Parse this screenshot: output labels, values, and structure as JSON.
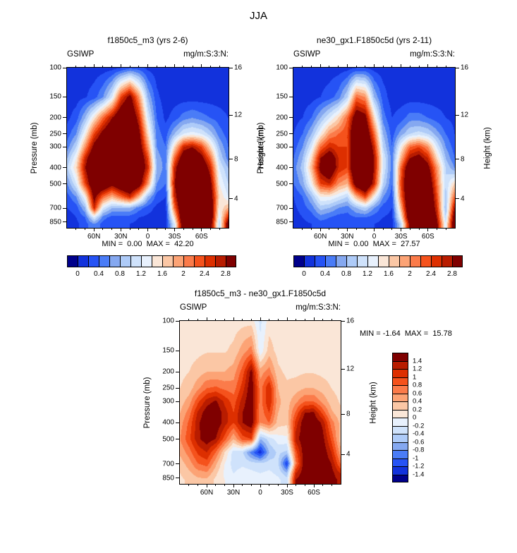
{
  "figure_title": "JJA",
  "palette": [
    "#00008B",
    "#1232DC",
    "#2653F5",
    "#4A7CF7",
    "#85A8F0",
    "#AECBF8",
    "#CFE2FB",
    "#E8F1FD",
    "#FAE6D7",
    "#FBC7A5",
    "#FCA375",
    "#FB7B4A",
    "#F5521C",
    "#DD2F00",
    "#B81C00",
    "#7F0000"
  ],
  "axes": {
    "ylabel": "Pressure (mb)",
    "y2label": "Height (km)",
    "pressure_ticks_mb": [
      100,
      150,
      200,
      250,
      300,
      400,
      500,
      700,
      850
    ],
    "pressure_tick_labels": [
      "100",
      "150",
      "200",
      "250",
      "300",
      "400",
      "500",
      "700",
      "850"
    ],
    "height_tick_pressures_mb": [
      96,
      193,
      356,
      616
    ],
    "height_tick_labels": [
      "16",
      "12",
      "8",
      "4"
    ],
    "lat_tick_labels": [
      "60N",
      "30N",
      "0",
      "30S",
      "60S"
    ],
    "pressure_axis_top_mb": 100,
    "pressure_axis_bottom_mb": 920,
    "lat_left_deg": 90,
    "lat_right_deg": -90
  },
  "colorbar_horizontal": {
    "tick_labels": [
      "0",
      "0.4",
      "0.8",
      "1.2",
      "1.6",
      "2",
      "2.4",
      "2.8"
    ],
    "boundary_positions": [
      1,
      3,
      5,
      7,
      9,
      11,
      13,
      15
    ]
  },
  "colorbar_vertical": {
    "tick_labels": [
      "1.4",
      "1.2",
      "1",
      "0.8",
      "0.6",
      "0.4",
      "0.2",
      "0",
      "-0.2",
      "-0.4",
      "-0.6",
      "-0.8",
      "-1",
      "-1.2",
      "-1.4"
    ],
    "boundary_positions": [
      1,
      2,
      3,
      4,
      5,
      6,
      7,
      8,
      9,
      10,
      11,
      12,
      13,
      14,
      15
    ]
  },
  "chart_data": [
    {
      "type": "heatmap",
      "title": "f1850c5_m3 (yrs 2-6)",
      "var_label": "GSIWP",
      "units_label": "mg/m:S:3:N:",
      "stats_text": "MIN =  0.00  MAX =  42.20",
      "min": 0.0,
      "max": 42.2,
      "contour_levels": [
        0,
        0.2,
        0.4,
        0.6,
        0.8,
        1.0,
        1.2,
        1.4,
        1.6,
        1.8,
        2.0,
        2.2,
        2.4,
        2.6,
        2.8
      ],
      "lats_deg": [
        90,
        80,
        70,
        60,
        50,
        40,
        30,
        20,
        10,
        0,
        -10,
        -20,
        -30,
        -40,
        -50,
        -60,
        -70,
        -80,
        -90
      ],
      "levels_mb": [
        100,
        150,
        200,
        250,
        300,
        350,
        400,
        500,
        600,
        700,
        800,
        875
      ],
      "values": [
        [
          0.1,
          0.1,
          0.1,
          0.1,
          0.1,
          0.12,
          0.2,
          0.35,
          0.3,
          0.15,
          0.1,
          0.1,
          0.1,
          0.1,
          0.1,
          0.1,
          0.1,
          0.1,
          0.1
        ],
        [
          0.1,
          0.12,
          0.18,
          0.3,
          0.6,
          1.2,
          2.4,
          3.0,
          2.0,
          0.8,
          0.25,
          0.1,
          0.1,
          0.1,
          0.1,
          0.1,
          0.1,
          0.1,
          0.1
        ],
        [
          0.15,
          0.3,
          0.8,
          1.5,
          2.2,
          2.8,
          3.4,
          3.5,
          2.6,
          1.2,
          0.4,
          0.15,
          0.3,
          0.5,
          0.6,
          0.5,
          0.4,
          0.3,
          0.2
        ],
        [
          0.3,
          0.6,
          1.4,
          2.4,
          3.0,
          3.4,
          3.6,
          3.5,
          3.0,
          1.6,
          0.5,
          0.3,
          0.8,
          1.2,
          1.3,
          1.2,
          0.9,
          0.5,
          0.3
        ],
        [
          0.5,
          1.0,
          2.0,
          3.0,
          3.4,
          3.6,
          3.6,
          3.6,
          3.2,
          2.0,
          0.6,
          0.4,
          1.6,
          2.6,
          2.8,
          2.4,
          1.6,
          0.8,
          0.4
        ],
        [
          0.8,
          1.4,
          2.6,
          3.4,
          3.6,
          3.6,
          3.6,
          3.6,
          3.4,
          2.4,
          0.7,
          0.5,
          2.2,
          3.2,
          3.4,
          3.0,
          2.2,
          1.0,
          0.5
        ],
        [
          1.0,
          1.6,
          2.8,
          3.6,
          3.6,
          3.6,
          3.6,
          3.6,
          3.4,
          2.6,
          0.8,
          0.5,
          2.6,
          3.6,
          3.6,
          3.4,
          2.6,
          1.2,
          0.8
        ],
        [
          0.6,
          1.2,
          2.4,
          3.4,
          3.4,
          3.0,
          3.4,
          3.6,
          3.2,
          2.0,
          0.6,
          0.4,
          2.8,
          3.6,
          3.6,
          3.6,
          3.0,
          1.4,
          1.0
        ],
        [
          0.3,
          0.6,
          1.4,
          3.0,
          2.2,
          1.8,
          2.2,
          2.6,
          1.8,
          0.8,
          0.3,
          0.2,
          2.6,
          3.6,
          3.6,
          3.6,
          3.2,
          1.6,
          1.2
        ],
        [
          0.2,
          0.3,
          0.8,
          2.6,
          1.2,
          0.8,
          0.8,
          0.8,
          0.5,
          0.3,
          0.15,
          0.1,
          2.2,
          3.6,
          3.6,
          3.6,
          3.4,
          1.4,
          1.8
        ],
        [
          0.1,
          0.2,
          0.4,
          1.2,
          0.5,
          0.3,
          0.3,
          0.3,
          0.2,
          0.15,
          0.1,
          0.1,
          1.6,
          3.6,
          3.6,
          3.6,
          3.4,
          1.2,
          2.6
        ],
        [
          0.1,
          0.15,
          0.3,
          0.6,
          0.3,
          0.2,
          0.2,
          0.2,
          0.15,
          0.1,
          0.1,
          0.1,
          1.2,
          3.4,
          3.6,
          3.6,
          3.2,
          1.0,
          3.2
        ]
      ]
    },
    {
      "type": "heatmap",
      "title": "ne30_gx1.F1850c5d (yrs 2-11)",
      "var_label": "GSIWP",
      "units_label": "mg/m:S:3:N:",
      "stats_text": "MIN =  0.00  MAX =  27.57",
      "min": 0.0,
      "max": 27.57,
      "contour_levels": [
        0,
        0.2,
        0.4,
        0.6,
        0.8,
        1.0,
        1.2,
        1.4,
        1.6,
        1.8,
        2.0,
        2.2,
        2.4,
        2.6,
        2.8
      ],
      "lats_deg": [
        90,
        80,
        70,
        60,
        50,
        40,
        30,
        20,
        10,
        0,
        -10,
        -20,
        -30,
        -40,
        -50,
        -60,
        -70,
        -80,
        -90
      ],
      "levels_mb": [
        100,
        150,
        200,
        250,
        300,
        350,
        400,
        500,
        600,
        700,
        800,
        875
      ],
      "values": [
        [
          0.1,
          0.1,
          0.1,
          0.1,
          0.1,
          0.1,
          0.12,
          0.2,
          0.2,
          0.12,
          0.1,
          0.1,
          0.1,
          0.1,
          0.1,
          0.1,
          0.1,
          0.1,
          0.1
        ],
        [
          0.1,
          0.1,
          0.12,
          0.2,
          0.3,
          0.5,
          1.0,
          2.2,
          2.0,
          0.8,
          0.3,
          0.1,
          0.1,
          0.1,
          0.1,
          0.1,
          0.1,
          0.1,
          0.1
        ],
        [
          0.12,
          0.2,
          0.4,
          0.8,
          1.2,
          1.6,
          2.2,
          3.2,
          3.0,
          1.6,
          0.5,
          0.2,
          0.3,
          0.5,
          0.5,
          0.4,
          0.3,
          0.2,
          0.15
        ],
        [
          0.2,
          0.4,
          0.8,
          1.4,
          2.0,
          2.2,
          2.4,
          3.6,
          3.4,
          2.2,
          0.8,
          0.3,
          0.7,
          1.0,
          1.1,
          1.0,
          0.7,
          0.4,
          0.2
        ],
        [
          0.3,
          0.6,
          1.2,
          2.2,
          2.6,
          2.4,
          2.4,
          3.6,
          3.6,
          2.6,
          1.0,
          0.4,
          1.4,
          2.2,
          2.4,
          2.0,
          1.2,
          0.6,
          0.3
        ],
        [
          0.4,
          0.8,
          1.6,
          2.8,
          3.2,
          2.6,
          2.4,
          3.6,
          3.6,
          2.8,
          1.2,
          0.5,
          1.8,
          2.8,
          3.0,
          2.6,
          1.6,
          0.8,
          0.4
        ],
        [
          0.5,
          0.9,
          1.8,
          3.0,
          3.4,
          2.6,
          2.4,
          3.6,
          3.6,
          2.8,
          1.2,
          0.5,
          2.2,
          3.4,
          3.4,
          3.0,
          2.0,
          1.0,
          0.6
        ],
        [
          0.4,
          0.7,
          1.4,
          2.4,
          2.6,
          2.0,
          1.8,
          3.2,
          3.6,
          2.6,
          1.0,
          0.4,
          2.4,
          3.6,
          3.6,
          3.4,
          2.2,
          1.0,
          1.6
        ],
        [
          0.2,
          0.4,
          0.8,
          1.4,
          1.4,
          1.2,
          1.0,
          1.8,
          2.4,
          1.4,
          0.6,
          0.3,
          2.2,
          3.6,
          3.6,
          3.6,
          2.4,
          0.9,
          2.2
        ],
        [
          0.15,
          0.3,
          0.5,
          0.9,
          0.8,
          0.6,
          0.5,
          0.8,
          1.0,
          0.6,
          0.3,
          0.2,
          1.8,
          3.6,
          3.6,
          3.6,
          2.6,
          0.8,
          2.8
        ],
        [
          0.1,
          0.2,
          0.3,
          0.5,
          0.4,
          0.3,
          0.3,
          0.4,
          0.4,
          0.3,
          0.2,
          0.15,
          1.4,
          3.4,
          3.6,
          3.6,
          2.8,
          1.0,
          3.2
        ],
        [
          0.1,
          0.15,
          0.2,
          0.3,
          0.3,
          0.2,
          0.2,
          0.3,
          0.3,
          0.2,
          0.15,
          0.1,
          1.0,
          3.0,
          3.6,
          3.6,
          3.0,
          1.2,
          3.4
        ]
      ]
    },
    {
      "type": "heatmap",
      "title": "f1850c5_m3 - ne30_gx1.F1850c5d",
      "var_label": "GSIWP",
      "units_label": "mg/m:S:3:N:",
      "stats_text": "MIN = -1.64  MAX =  15.78",
      "min": -1.64,
      "max": 15.78,
      "contour_levels": [
        -1.4,
        -1.2,
        -1.0,
        -0.8,
        -0.6,
        -0.4,
        -0.2,
        0,
        0.2,
        0.4,
        0.6,
        0.8,
        1.0,
        1.2,
        1.4
      ],
      "lats_deg": [
        90,
        80,
        70,
        60,
        50,
        40,
        30,
        20,
        10,
        0,
        -10,
        -20,
        -30,
        -40,
        -50,
        -60,
        -70,
        -80,
        -90
      ],
      "levels_mb": [
        100,
        150,
        200,
        250,
        300,
        350,
        400,
        500,
        600,
        700,
        800,
        875
      ],
      "values": [
        [
          0.1,
          0.1,
          0.1,
          0.1,
          0.1,
          0.1,
          0.1,
          0.12,
          0.12,
          -0.25,
          0.1,
          0.1,
          0.1,
          0.1,
          0.1,
          0.1,
          0.1,
          0.1,
          0.1
        ],
        [
          0.1,
          0.12,
          0.15,
          0.18,
          0.18,
          0.18,
          0.25,
          0.5,
          0.7,
          -0.15,
          0.3,
          0.12,
          0.1,
          0.1,
          0.1,
          0.1,
          0.1,
          0.1,
          0.1
        ],
        [
          0.15,
          0.2,
          0.3,
          0.4,
          0.4,
          0.4,
          0.5,
          0.9,
          1.5,
          0.5,
          0.7,
          0.25,
          0.15,
          0.15,
          0.18,
          0.18,
          0.15,
          0.12,
          0.1
        ],
        [
          0.2,
          0.3,
          0.55,
          0.8,
          0.85,
          0.75,
          0.7,
          1.1,
          1.6,
          0.7,
          1.2,
          0.4,
          0.25,
          0.3,
          0.4,
          0.4,
          0.3,
          0.2,
          0.12
        ],
        [
          0.3,
          0.5,
          0.95,
          1.3,
          1.45,
          1.15,
          0.9,
          1.3,
          1.6,
          0.7,
          1.2,
          0.45,
          0.3,
          0.55,
          0.8,
          0.8,
          0.55,
          0.3,
          0.18
        ],
        [
          0.4,
          0.7,
          1.25,
          1.55,
          1.6,
          1.3,
          1.0,
          1.4,
          1.6,
          0.65,
          1.0,
          0.4,
          0.3,
          0.85,
          1.4,
          1.45,
          0.95,
          0.45,
          0.25
        ],
        [
          0.5,
          0.85,
          1.35,
          1.6,
          1.6,
          1.3,
          1.0,
          1.4,
          1.6,
          0.6,
          0.8,
          0.3,
          0.25,
          1.1,
          1.6,
          1.6,
          1.35,
          0.7,
          0.35
        ],
        [
          0.6,
          0.95,
          1.35,
          1.55,
          1.4,
          0.9,
          0.4,
          0.9,
          1.0,
          -0.6,
          -0.3,
          -0.1,
          -0.05,
          1.3,
          1.6,
          1.6,
          1.5,
          0.95,
          0.3
        ],
        [
          0.45,
          0.7,
          1.05,
          1.2,
          0.8,
          0.2,
          -0.3,
          -0.35,
          -0.9,
          -1.35,
          -0.6,
          -0.35,
          -0.45,
          0.9,
          1.6,
          1.6,
          1.6,
          1.2,
          0.5
        ],
        [
          0.3,
          0.5,
          0.8,
          0.9,
          0.45,
          0.0,
          -0.3,
          -0.25,
          -0.3,
          -0.35,
          -0.3,
          -0.35,
          -1.25,
          0.7,
          1.6,
          1.6,
          1.6,
          1.4,
          0.8
        ],
        [
          0.2,
          0.35,
          0.5,
          0.55,
          0.25,
          -0.05,
          -0.2,
          -0.1,
          -0.15,
          -0.2,
          -0.15,
          -0.25,
          -0.55,
          1.2,
          1.6,
          1.6,
          1.6,
          1.5,
          1.2
        ],
        [
          0.15,
          0.25,
          0.35,
          0.35,
          0.15,
          0.0,
          -0.1,
          -0.08,
          -0.1,
          -0.12,
          -0.1,
          -0.15,
          -0.3,
          1.4,
          1.6,
          1.6,
          1.6,
          1.5,
          1.35
        ]
      ]
    }
  ]
}
